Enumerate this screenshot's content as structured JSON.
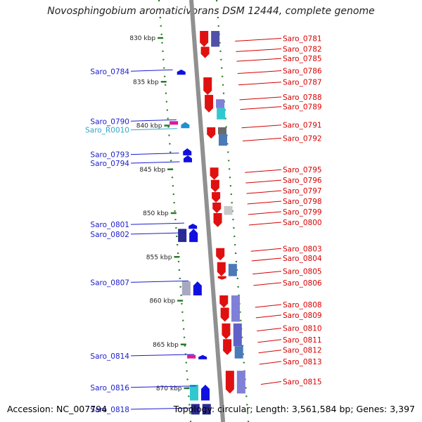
{
  "title": "Novosphingobium aromaticivorans DSM 12444, complete genome",
  "footer": {
    "accession": "Accession: NC_007794",
    "summary": "Topology: circular; Length: 3,561,584 bp; Genes: 3,397"
  },
  "colors": {
    "left_label": "#1c1ccf",
    "right_label": "#d60000",
    "rna_label": "#2fa8cc",
    "backbone": "#909090",
    "tick": "#2a7a2a"
  },
  "scale": {
    "unit": "kbp",
    "ticks": [
      {
        "kbp": 830,
        "label": "830 kbp"
      },
      {
        "kbp": 835,
        "label": "835 kbp"
      },
      {
        "kbp": 840,
        "label": "840 kbp"
      },
      {
        "kbp": 845,
        "label": "845 kbp"
      },
      {
        "kbp": 850,
        "label": "850 kbp"
      },
      {
        "kbp": 855,
        "label": "855 kbp"
      },
      {
        "kbp": 860,
        "label": "860 kbp"
      },
      {
        "kbp": 865,
        "label": "865 kbp"
      },
      {
        "kbp": 870,
        "label": "870 kbp"
      }
    ]
  },
  "left_genes": [
    {
      "id": "Saro_0784",
      "kbp": 833.8,
      "rna": false
    },
    {
      "id": "Saro_0790",
      "kbp": 839.5,
      "rna": false
    },
    {
      "id": "Saro_R0010",
      "kbp": 840.5,
      "rna": true
    },
    {
      "id": "Saro_0793",
      "kbp": 843.3,
      "rna": false
    },
    {
      "id": "Saro_0794",
      "kbp": 844.3,
      "rna": false
    },
    {
      "id": "Saro_0801",
      "kbp": 851.3,
      "rna": false
    },
    {
      "id": "Saro_0802",
      "kbp": 852.4,
      "rna": false
    },
    {
      "id": "Saro_0807",
      "kbp": 857.9,
      "rna": false
    },
    {
      "id": "Saro_0814",
      "kbp": 866.3,
      "rna": false
    },
    {
      "id": "Saro_0816",
      "kbp": 869.9,
      "rna": false
    },
    {
      "id": "Saro_0818",
      "kbp": 872.4,
      "rna": false
    }
  ],
  "right_genes": [
    {
      "id": "Saro_0781",
      "kbp": 830.2
    },
    {
      "id": "Saro_0782",
      "kbp": 831.4
    },
    {
      "id": "Saro_0785",
      "kbp": 832.5
    },
    {
      "id": "Saro_0786",
      "kbp": 833.9
    },
    {
      "id": "Saro_0787",
      "kbp": 835.2
    },
    {
      "id": "Saro_0788",
      "kbp": 836.9
    },
    {
      "id": "Saro_0789",
      "kbp": 838.0
    },
    {
      "id": "Saro_0791",
      "kbp": 840.1
    },
    {
      "id": "Saro_0792",
      "kbp": 841.6
    },
    {
      "id": "Saro_0795",
      "kbp": 845.2
    },
    {
      "id": "Saro_0796",
      "kbp": 846.4
    },
    {
      "id": "Saro_0797",
      "kbp": 847.6
    },
    {
      "id": "Saro_0798",
      "kbp": 848.8
    },
    {
      "id": "Saro_0799",
      "kbp": 850.0
    },
    {
      "id": "Saro_0800",
      "kbp": 851.2
    },
    {
      "id": "Saro_0803",
      "kbp": 854.2
    },
    {
      "id": "Saro_0804",
      "kbp": 855.3
    },
    {
      "id": "Saro_0805",
      "kbp": 856.8
    },
    {
      "id": "Saro_0806",
      "kbp": 858.1
    },
    {
      "id": "Saro_0808",
      "kbp": 860.6
    },
    {
      "id": "Saro_0809",
      "kbp": 861.8
    },
    {
      "id": "Saro_0810",
      "kbp": 863.3
    },
    {
      "id": "Saro_0811",
      "kbp": 864.6
    },
    {
      "id": "Saro_0812",
      "kbp": 865.8
    },
    {
      "id": "Saro_0813",
      "kbp": 867.1
    },
    {
      "id": "Saro_0815",
      "kbp": 869.4
    }
  ],
  "features": [
    {
      "kind": "rev-arrow",
      "color": "#e01010",
      "start": 829.2,
      "end": 831.0,
      "lane": 0
    },
    {
      "kind": "rev-arrow",
      "color": "#e01010",
      "start": 831.0,
      "end": 832.3,
      "lane": 0
    },
    {
      "kind": "box",
      "color": "#5050a8",
      "start": 829.2,
      "end": 831.0,
      "lane": 1
    },
    {
      "kind": "fwd-arrow",
      "color": "#1010e0",
      "start": 833.6,
      "end": 834.2,
      "lane": -1
    },
    {
      "kind": "rev-arrow",
      "color": "#e01010",
      "start": 834.5,
      "end": 836.5,
      "lane": 0
    },
    {
      "kind": "rev-arrow",
      "color": "#e01010",
      "start": 836.5,
      "end": 838.5,
      "lane": 0
    },
    {
      "kind": "box",
      "color": "#8080d8",
      "start": 837.0,
      "end": 838.0,
      "lane": 1
    },
    {
      "kind": "box",
      "color": "#30c8d0",
      "start": 838.0,
      "end": 839.3,
      "lane": 1
    },
    {
      "kind": "box",
      "color": "#e01890",
      "start": 839.5,
      "end": 839.8,
      "lane": -2
    },
    {
      "kind": "fwd-arrow",
      "color": "#2090d0",
      "start": 839.6,
      "end": 840.3,
      "lane": -1
    },
    {
      "kind": "rev-arrow",
      "color": "#e01010",
      "start": 840.2,
      "end": 841.5,
      "lane": 0
    },
    {
      "kind": "box",
      "color": "#6a6a6a",
      "start": 840.2,
      "end": 841.0,
      "lane": 1
    },
    {
      "kind": "box",
      "color": "#4a7ab8",
      "start": 841.0,
      "end": 842.3,
      "lane": 1
    },
    {
      "kind": "fwd-arrow",
      "color": "#1010e0",
      "start": 842.6,
      "end": 843.4,
      "lane": -1
    },
    {
      "kind": "fwd-arrow",
      "color": "#1010e0",
      "start": 843.4,
      "end": 844.2,
      "lane": -1
    },
    {
      "kind": "rev-arrow",
      "color": "#e01010",
      "start": 844.8,
      "end": 846.2,
      "lane": 0
    },
    {
      "kind": "rev-arrow",
      "color": "#e01010",
      "start": 846.2,
      "end": 847.6,
      "lane": 0
    },
    {
      "kind": "rev-arrow",
      "color": "#e01010",
      "start": 847.6,
      "end": 848.8,
      "lane": 0
    },
    {
      "kind": "rev-arrow",
      "color": "#e01010",
      "start": 848.8,
      "end": 850.0,
      "lane": 0
    },
    {
      "kind": "box",
      "color": "#c8c8c8",
      "start": 849.2,
      "end": 850.2,
      "lane": 1
    },
    {
      "kind": "rev-arrow",
      "color": "#e01010",
      "start": 850.0,
      "end": 851.6,
      "lane": 0
    },
    {
      "kind": "box",
      "color": "#2a2a90",
      "start": 851.8,
      "end": 853.3,
      "lane": -2
    },
    {
      "kind": "fwd-arrow",
      "color": "#1010e0",
      "start": 851.2,
      "end": 851.8,
      "lane": -1
    },
    {
      "kind": "fwd-arrow",
      "color": "#1010e0",
      "start": 851.8,
      "end": 853.3,
      "lane": -1
    },
    {
      "kind": "rev-arrow",
      "color": "#e01010",
      "start": 854.0,
      "end": 855.4,
      "lane": 0
    },
    {
      "kind": "rev-arrow",
      "color": "#e01010",
      "start": 855.6,
      "end": 857.2,
      "lane": 0
    },
    {
      "kind": "box",
      "color": "#4a7ab8",
      "start": 855.8,
      "end": 857.2,
      "lane": 1
    },
    {
      "kind": "rev-arrow",
      "color": "#e01010",
      "start": 857.2,
      "end": 857.6,
      "lane": 0
    },
    {
      "kind": "box",
      "color": "#a8a8c0",
      "start": 857.8,
      "end": 859.4,
      "lane": -2
    },
    {
      "kind": "fwd-arrow",
      "color": "#1010e0",
      "start": 857.8,
      "end": 859.4,
      "lane": -1
    },
    {
      "kind": "rev-arrow",
      "color": "#e01010",
      "start": 859.4,
      "end": 860.8,
      "lane": 0
    },
    {
      "kind": "rev-arrow",
      "color": "#e01010",
      "start": 860.8,
      "end": 862.4,
      "lane": 0
    },
    {
      "kind": "box",
      "color": "#8080d8",
      "start": 859.4,
      "end": 862.4,
      "lane": 1
    },
    {
      "kind": "rev-arrow",
      "color": "#e01010",
      "start": 862.6,
      "end": 864.4,
      "lane": 0
    },
    {
      "kind": "box",
      "color": "#6060c8",
      "start": 862.6,
      "end": 865.2,
      "lane": 1
    },
    {
      "kind": "rev-arrow",
      "color": "#e01010",
      "start": 864.4,
      "end": 866.2,
      "lane": 0
    },
    {
      "kind": "box",
      "color": "#4a7ab8",
      "start": 865.2,
      "end": 866.6,
      "lane": 1
    },
    {
      "kind": "box",
      "color": "#e01890",
      "start": 866.2,
      "end": 866.6,
      "lane": -2
    },
    {
      "kind": "fwd-arrow",
      "color": "#1010e0",
      "start": 866.2,
      "end": 866.7,
      "lane": -1
    },
    {
      "kind": "rev-arrow",
      "color": "#e01010",
      "start": 868.0,
      "end": 870.6,
      "lane": 0
    },
    {
      "kind": "box",
      "color": "#8080d8",
      "start": 868.0,
      "end": 870.6,
      "lane": 1
    },
    {
      "kind": "box",
      "color": "#30c8d0",
      "start": 869.6,
      "end": 871.4,
      "lane": -2
    },
    {
      "kind": "fwd-arrow",
      "color": "#1010e0",
      "start": 869.6,
      "end": 871.4,
      "lane": -1
    },
    {
      "kind": "box",
      "color": "#2a2a90",
      "start": 871.8,
      "end": 873.0,
      "lane": -2
    },
    {
      "kind": "box",
      "color": "#2a2a90",
      "start": 871.8,
      "end": 873.0,
      "lane": -1
    }
  ]
}
